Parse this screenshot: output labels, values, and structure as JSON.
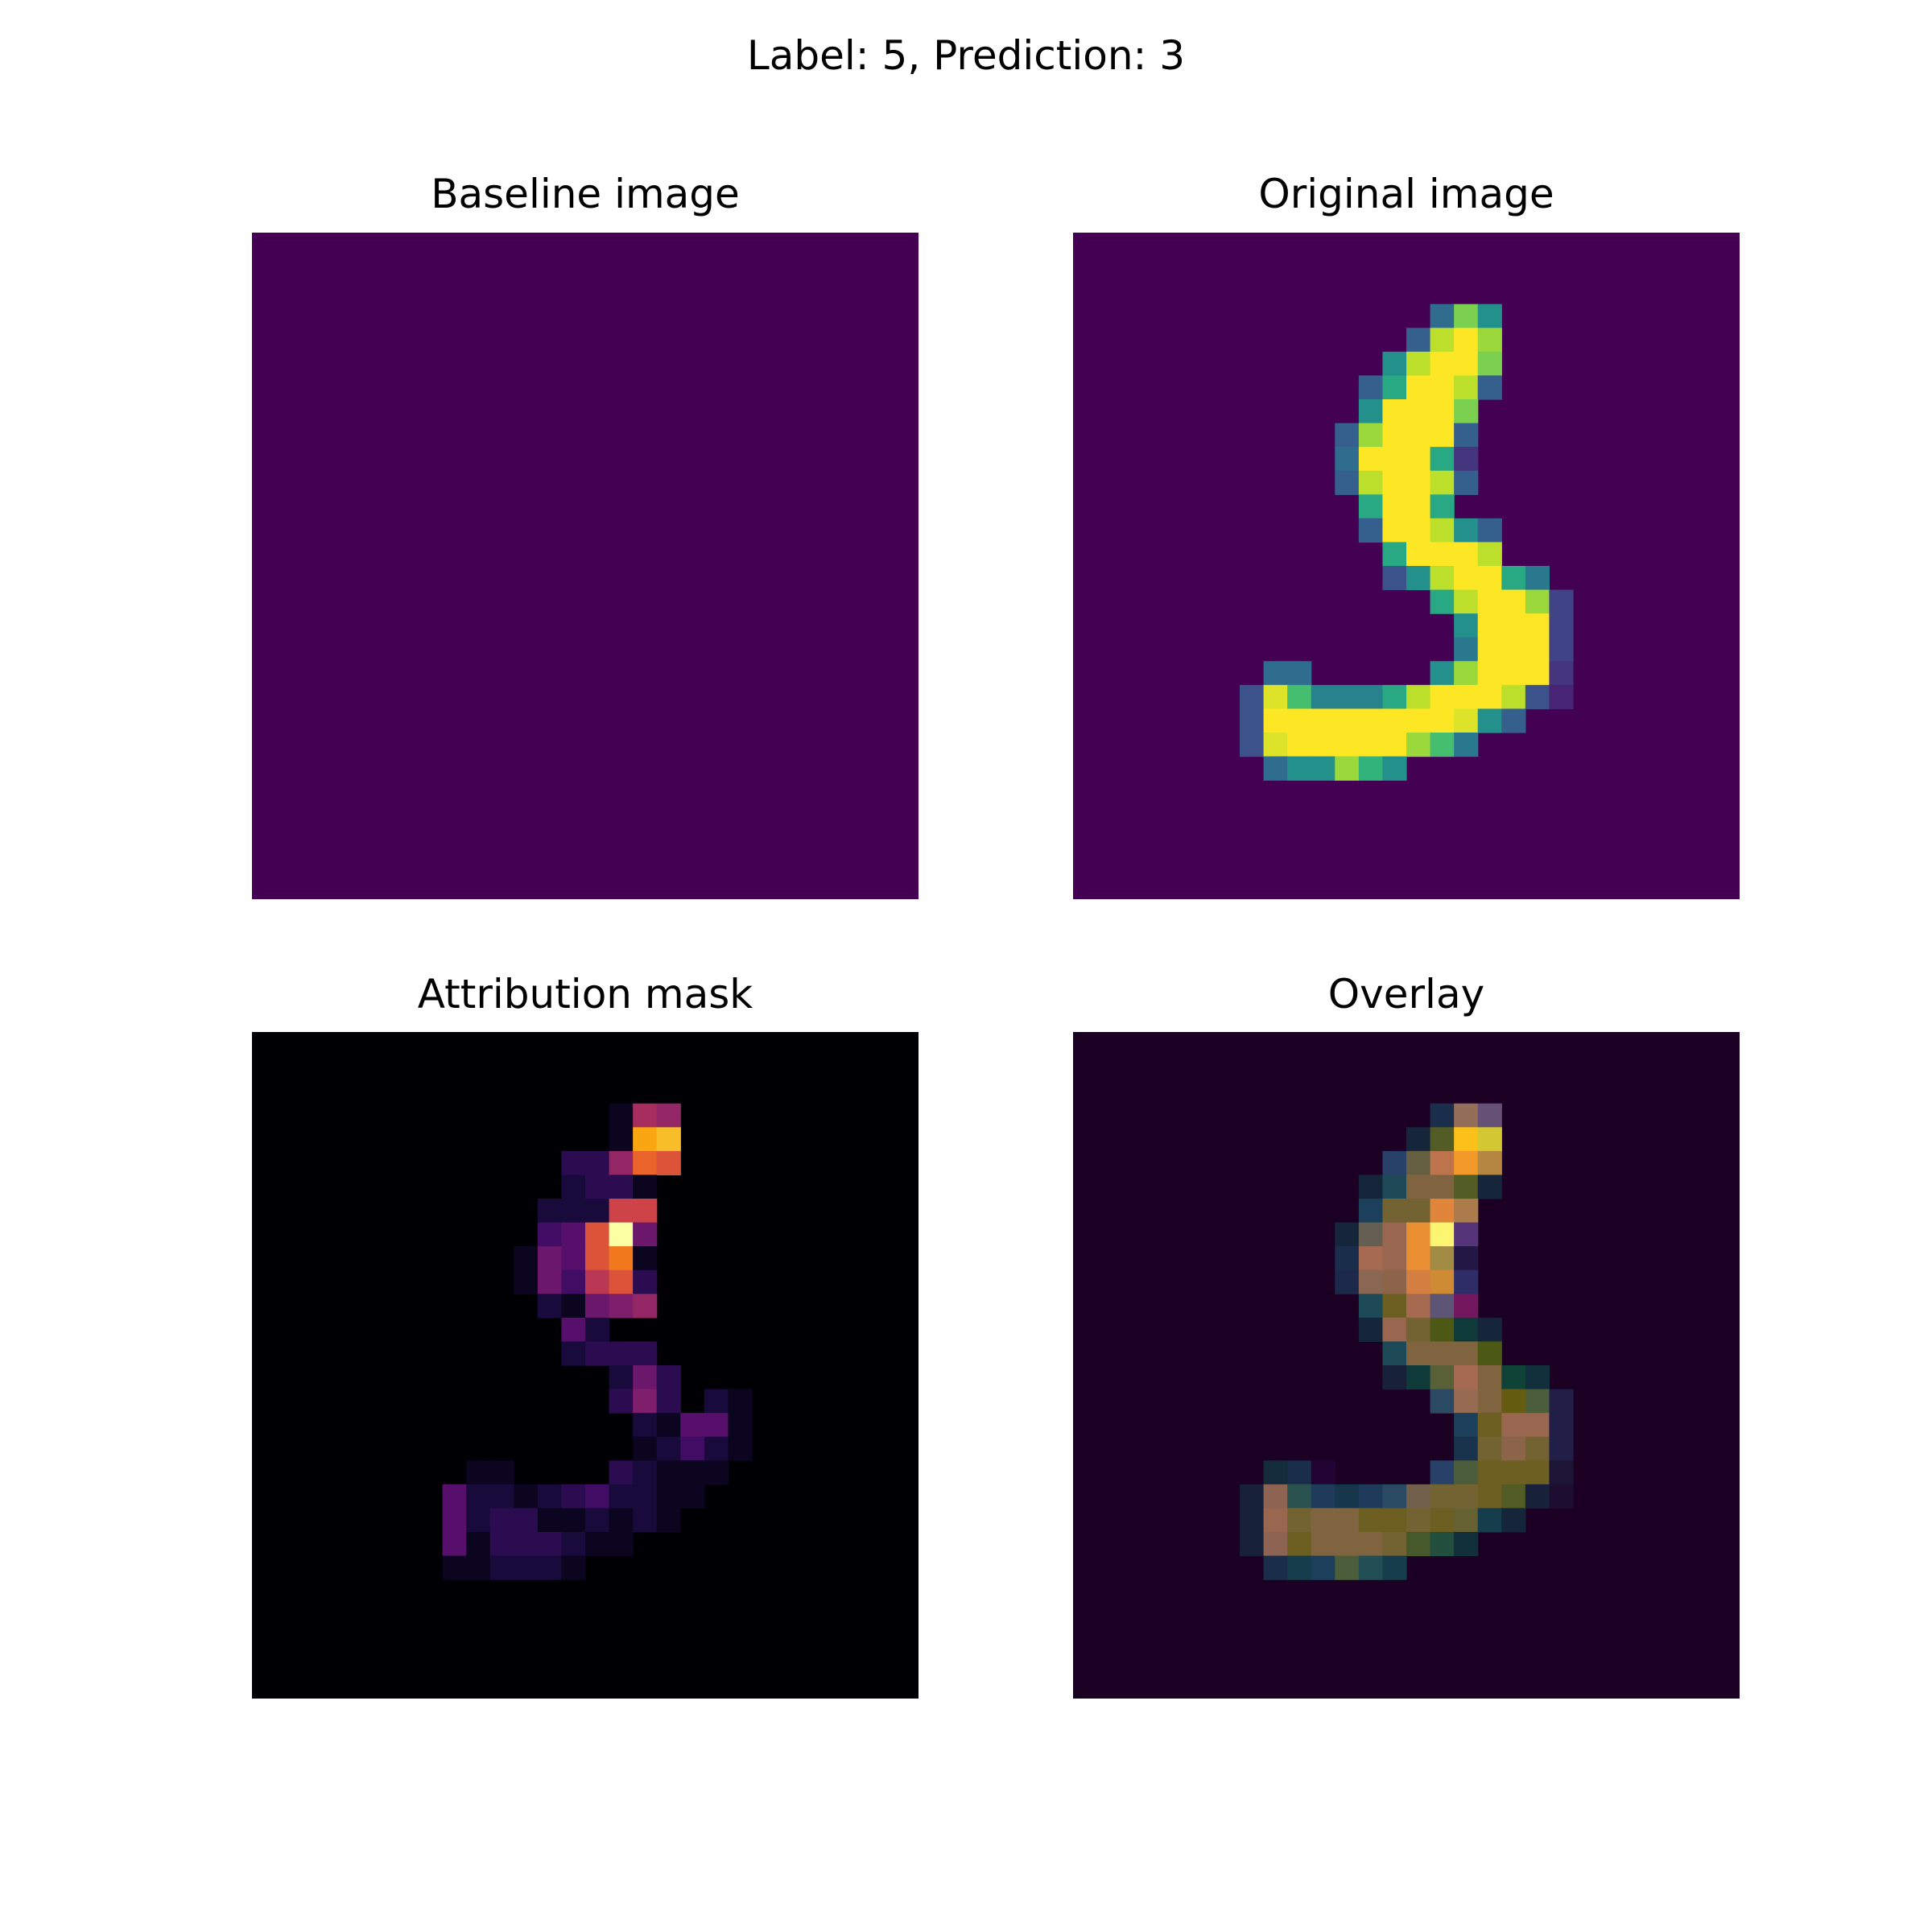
{
  "figure": {
    "suptitle": "Label: 5, Prediction: 3"
  },
  "chart_data": [
    {
      "type": "heatmap",
      "title": "Baseline image",
      "colormap": "viridis",
      "grid_size": [
        28,
        28
      ],
      "axes": "off",
      "background_value": 0,
      "cells": []
    },
    {
      "type": "heatmap",
      "title": "Original image",
      "colormap": "viridis",
      "grid_size": [
        28,
        28
      ],
      "axes": "off",
      "background_value": 0,
      "cells": [
        [
          3,
          15,
          0.35
        ],
        [
          3,
          16,
          0.8
        ],
        [
          3,
          17,
          0.5
        ],
        [
          4,
          14,
          0.3
        ],
        [
          4,
          15,
          0.9
        ],
        [
          4,
          16,
          1.0
        ],
        [
          4,
          17,
          0.85
        ],
        [
          5,
          13,
          0.5
        ],
        [
          5,
          14,
          0.9
        ],
        [
          5,
          15,
          1.0
        ],
        [
          5,
          16,
          1.0
        ],
        [
          5,
          17,
          0.8
        ],
        [
          6,
          12,
          0.3
        ],
        [
          6,
          13,
          0.6
        ],
        [
          6,
          14,
          1.0
        ],
        [
          6,
          15,
          1.0
        ],
        [
          6,
          16,
          0.9
        ],
        [
          6,
          17,
          0.3
        ],
        [
          7,
          12,
          0.5
        ],
        [
          7,
          13,
          1.0
        ],
        [
          7,
          14,
          1.0
        ],
        [
          7,
          15,
          1.0
        ],
        [
          7,
          16,
          0.8
        ],
        [
          8,
          11,
          0.3
        ],
        [
          8,
          12,
          0.85
        ],
        [
          8,
          13,
          1.0
        ],
        [
          8,
          14,
          1.0
        ],
        [
          8,
          15,
          1.0
        ],
        [
          8,
          16,
          0.3
        ],
        [
          9,
          11,
          0.35
        ],
        [
          9,
          12,
          1.0
        ],
        [
          9,
          13,
          1.0
        ],
        [
          9,
          14,
          1.0
        ],
        [
          9,
          15,
          0.6
        ],
        [
          9,
          16,
          0.15
        ],
        [
          10,
          11,
          0.3
        ],
        [
          10,
          12,
          0.9
        ],
        [
          10,
          13,
          1.0
        ],
        [
          10,
          14,
          1.0
        ],
        [
          10,
          15,
          0.9
        ],
        [
          10,
          16,
          0.3
        ],
        [
          11,
          12,
          0.6
        ],
        [
          11,
          13,
          1.0
        ],
        [
          11,
          14,
          1.0
        ],
        [
          11,
          15,
          0.6
        ],
        [
          12,
          12,
          0.3
        ],
        [
          12,
          13,
          1.0
        ],
        [
          12,
          14,
          1.0
        ],
        [
          12,
          15,
          0.9
        ],
        [
          12,
          16,
          0.5
        ],
        [
          12,
          17,
          0.3
        ],
        [
          13,
          13,
          0.6
        ],
        [
          13,
          14,
          1.0
        ],
        [
          13,
          15,
          1.0
        ],
        [
          13,
          16,
          1.0
        ],
        [
          13,
          17,
          0.9
        ],
        [
          14,
          13,
          0.25
        ],
        [
          14,
          14,
          0.5
        ],
        [
          14,
          15,
          0.9
        ],
        [
          14,
          16,
          1.0
        ],
        [
          14,
          17,
          1.0
        ],
        [
          14,
          18,
          0.6
        ],
        [
          14,
          19,
          0.4
        ],
        [
          15,
          15,
          0.6
        ],
        [
          15,
          16,
          0.9
        ],
        [
          15,
          17,
          1.0
        ],
        [
          15,
          18,
          1.0
        ],
        [
          15,
          19,
          0.85
        ],
        [
          15,
          20,
          0.2
        ],
        [
          16,
          16,
          0.5
        ],
        [
          16,
          17,
          1.0
        ],
        [
          16,
          18,
          1.0
        ],
        [
          16,
          19,
          1.0
        ],
        [
          16,
          20,
          0.2
        ],
        [
          17,
          16,
          0.4
        ],
        [
          17,
          17,
          1.0
        ],
        [
          17,
          18,
          1.0
        ],
        [
          17,
          19,
          1.0
        ],
        [
          17,
          20,
          0.2
        ],
        [
          18,
          8,
          0.35
        ],
        [
          18,
          9,
          0.35
        ],
        [
          18,
          15,
          0.5
        ],
        [
          18,
          16,
          0.85
        ],
        [
          18,
          17,
          1.0
        ],
        [
          18,
          18,
          1.0
        ],
        [
          18,
          19,
          1.0
        ],
        [
          18,
          20,
          0.15
        ],
        [
          19,
          7,
          0.25
        ],
        [
          19,
          8,
          0.95
        ],
        [
          19,
          9,
          0.7
        ],
        [
          19,
          10,
          0.45
        ],
        [
          19,
          11,
          0.45
        ],
        [
          19,
          12,
          0.45
        ],
        [
          19,
          13,
          0.6
        ],
        [
          19,
          14,
          0.9
        ],
        [
          19,
          15,
          1.0
        ],
        [
          19,
          16,
          1.0
        ],
        [
          19,
          17,
          1.0
        ],
        [
          19,
          18,
          0.9
        ],
        [
          19,
          19,
          0.25
        ],
        [
          19,
          20,
          0.1
        ],
        [
          20,
          7,
          0.25
        ],
        [
          20,
          8,
          1.0
        ],
        [
          20,
          9,
          1.0
        ],
        [
          20,
          10,
          1.0
        ],
        [
          20,
          11,
          1.0
        ],
        [
          20,
          12,
          1.0
        ],
        [
          20,
          13,
          1.0
        ],
        [
          20,
          14,
          1.0
        ],
        [
          20,
          15,
          1.0
        ],
        [
          20,
          16,
          0.95
        ],
        [
          20,
          17,
          0.5
        ],
        [
          20,
          18,
          0.3
        ],
        [
          21,
          7,
          0.25
        ],
        [
          21,
          8,
          0.95
        ],
        [
          21,
          9,
          1.0
        ],
        [
          21,
          10,
          1.0
        ],
        [
          21,
          11,
          1.0
        ],
        [
          21,
          12,
          1.0
        ],
        [
          21,
          13,
          1.0
        ],
        [
          21,
          14,
          0.85
        ],
        [
          21,
          15,
          0.7
        ],
        [
          21,
          16,
          0.4
        ],
        [
          22,
          8,
          0.35
        ],
        [
          22,
          9,
          0.5
        ],
        [
          22,
          10,
          0.5
        ],
        [
          22,
          11,
          0.85
        ],
        [
          22,
          12,
          0.65
        ],
        [
          22,
          13,
          0.5
        ]
      ]
    },
    {
      "type": "heatmap",
      "title": "Attribution mask",
      "colormap": "inferno",
      "grid_size": [
        28,
        28
      ],
      "axes": "off",
      "background_value": 0,
      "cells": [
        [
          3,
          15,
          0.05
        ],
        [
          3,
          16,
          0.45
        ],
        [
          3,
          17,
          0.4
        ],
        [
          4,
          15,
          0.05
        ],
        [
          4,
          16,
          0.8
        ],
        [
          4,
          17,
          0.85
        ],
        [
          5,
          13,
          0.15
        ],
        [
          5,
          14,
          0.15
        ],
        [
          5,
          15,
          0.4
        ],
        [
          5,
          16,
          0.65
        ],
        [
          5,
          17,
          0.6
        ],
        [
          6,
          13,
          0.1
        ],
        [
          6,
          14,
          0.15
        ],
        [
          6,
          15,
          0.15
        ],
        [
          6,
          16,
          0.05
        ],
        [
          7,
          12,
          0.1
        ],
        [
          7,
          13,
          0.1
        ],
        [
          7,
          14,
          0.1
        ],
        [
          7,
          15,
          0.55
        ],
        [
          7,
          16,
          0.55
        ],
        [
          8,
          12,
          0.2
        ],
        [
          8,
          13,
          0.25
        ],
        [
          8,
          14,
          0.6
        ],
        [
          8,
          15,
          1.0
        ],
        [
          8,
          16,
          0.3
        ],
        [
          9,
          11,
          0.05
        ],
        [
          9,
          12,
          0.3
        ],
        [
          9,
          13,
          0.25
        ],
        [
          9,
          14,
          0.6
        ],
        [
          9,
          15,
          0.7
        ],
        [
          9,
          16,
          0.05
        ],
        [
          10,
          11,
          0.05
        ],
        [
          10,
          12,
          0.3
        ],
        [
          10,
          13,
          0.2
        ],
        [
          10,
          14,
          0.5
        ],
        [
          10,
          15,
          0.6
        ],
        [
          10,
          16,
          0.15
        ],
        [
          11,
          12,
          0.1
        ],
        [
          11,
          13,
          0.05
        ],
        [
          11,
          14,
          0.3
        ],
        [
          11,
          15,
          0.35
        ],
        [
          11,
          16,
          0.4
        ],
        [
          12,
          13,
          0.25
        ],
        [
          12,
          14,
          0.1
        ],
        [
          13,
          13,
          0.1
        ],
        [
          13,
          14,
          0.15
        ],
        [
          13,
          15,
          0.15
        ],
        [
          13,
          16,
          0.15
        ],
        [
          14,
          15,
          0.1
        ],
        [
          14,
          16,
          0.3
        ],
        [
          14,
          17,
          0.15
        ],
        [
          15,
          15,
          0.15
        ],
        [
          15,
          16,
          0.35
        ],
        [
          15,
          17,
          0.15
        ],
        [
          15,
          19,
          0.1
        ],
        [
          15,
          20,
          0.05
        ],
        [
          16,
          16,
          0.1
        ],
        [
          16,
          17,
          0.05
        ],
        [
          16,
          18,
          0.25
        ],
        [
          16,
          19,
          0.25
        ],
        [
          16,
          20,
          0.05
        ],
        [
          17,
          16,
          0.05
        ],
        [
          17,
          17,
          0.1
        ],
        [
          17,
          18,
          0.2
        ],
        [
          17,
          19,
          0.1
        ],
        [
          17,
          20,
          0.05
        ],
        [
          18,
          9,
          0.05
        ],
        [
          18,
          10,
          0.05
        ],
        [
          18,
          15,
          0.15
        ],
        [
          18,
          16,
          0.1
        ],
        [
          18,
          17,
          0.05
        ],
        [
          18,
          18,
          0.05
        ],
        [
          18,
          19,
          0.05
        ],
        [
          19,
          8,
          0.25
        ],
        [
          19,
          9,
          0.1
        ],
        [
          19,
          10,
          0.1
        ],
        [
          19,
          11,
          0.05
        ],
        [
          19,
          12,
          0.1
        ],
        [
          19,
          13,
          0.15
        ],
        [
          19,
          14,
          0.2
        ],
        [
          19,
          15,
          0.1
        ],
        [
          19,
          16,
          0.1
        ],
        [
          19,
          17,
          0.05
        ],
        [
          19,
          18,
          0.05
        ],
        [
          20,
          8,
          0.25
        ],
        [
          20,
          9,
          0.1
        ],
        [
          20,
          10,
          0.15
        ],
        [
          20,
          11,
          0.15
        ],
        [
          20,
          12,
          0.05
        ],
        [
          20,
          13,
          0.05
        ],
        [
          20,
          14,
          0.1
        ],
        [
          20,
          15,
          0.05
        ],
        [
          20,
          16,
          0.1
        ],
        [
          20,
          17,
          0.05
        ],
        [
          21,
          8,
          0.25
        ],
        [
          21,
          9,
          0.05
        ],
        [
          21,
          10,
          0.15
        ],
        [
          21,
          11,
          0.15
        ],
        [
          21,
          12,
          0.15
        ],
        [
          21,
          13,
          0.1
        ],
        [
          21,
          14,
          0.05
        ],
        [
          21,
          15,
          0.05
        ],
        [
          22,
          8,
          0.05
        ],
        [
          22,
          9,
          0.05
        ],
        [
          22,
          10,
          0.1
        ],
        [
          22,
          11,
          0.1
        ],
        [
          22,
          12,
          0.1
        ],
        [
          22,
          13,
          0.05
        ]
      ]
    },
    {
      "type": "heatmap",
      "title": "Overlay",
      "composite_of": [
        "Original image",
        "Attribution mask"
      ],
      "grid_size": [
        28,
        28
      ],
      "axes": "off"
    }
  ]
}
